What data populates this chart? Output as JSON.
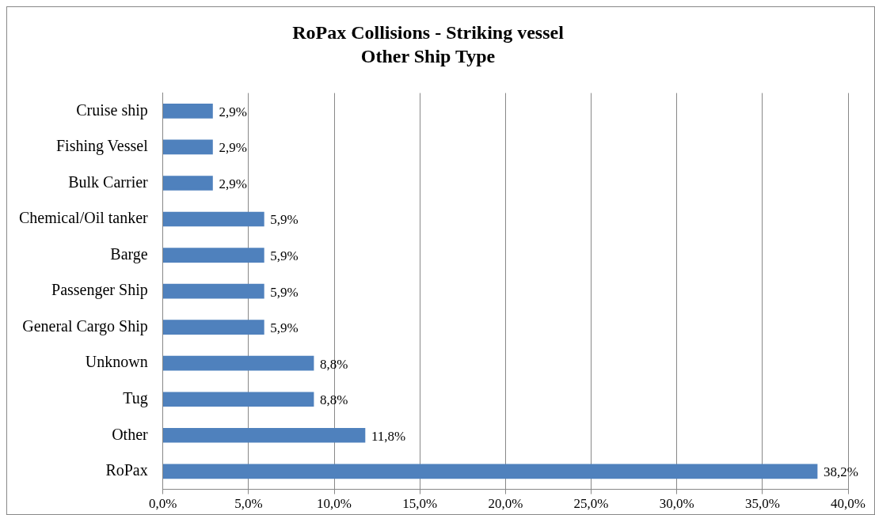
{
  "chart_data": {
    "type": "bar",
    "orientation": "horizontal",
    "title": "RoPax Collisions - Striking vessel",
    "subtitle": "Other Ship Type",
    "categories": [
      "Cruise ship",
      "Fishing Vessel",
      "Bulk Carrier",
      "Chemical/Oil tanker",
      "Barge",
      "Passenger Ship",
      "General Cargo Ship",
      "Unknown",
      "Tug",
      "Other",
      "RoPax"
    ],
    "values": [
      2.9,
      2.9,
      2.9,
      5.9,
      5.9,
      5.9,
      5.9,
      8.8,
      8.8,
      11.8,
      38.2
    ],
    "value_labels": [
      "2,9%",
      "2,9%",
      "2,9%",
      "5,9%",
      "5,9%",
      "5,9%",
      "5,9%",
      "8,8%",
      "8,8%",
      "11,8%",
      "38,2%"
    ],
    "color": "#4f81bd",
    "xlim": [
      0,
      40
    ],
    "xticks": [
      {
        "value": 0,
        "label": "0,0%"
      },
      {
        "value": 5,
        "label": "5,0%"
      },
      {
        "value": 10,
        "label": "10,0%"
      },
      {
        "value": 15,
        "label": "15,0%"
      },
      {
        "value": 20,
        "label": "20,0%"
      },
      {
        "value": 25,
        "label": "25,0%"
      },
      {
        "value": 30,
        "label": "30,0%"
      },
      {
        "value": 35,
        "label": "35,0%"
      },
      {
        "value": 40,
        "label": "40,0%"
      }
    ],
    "grid": "x",
    "legend": false
  }
}
